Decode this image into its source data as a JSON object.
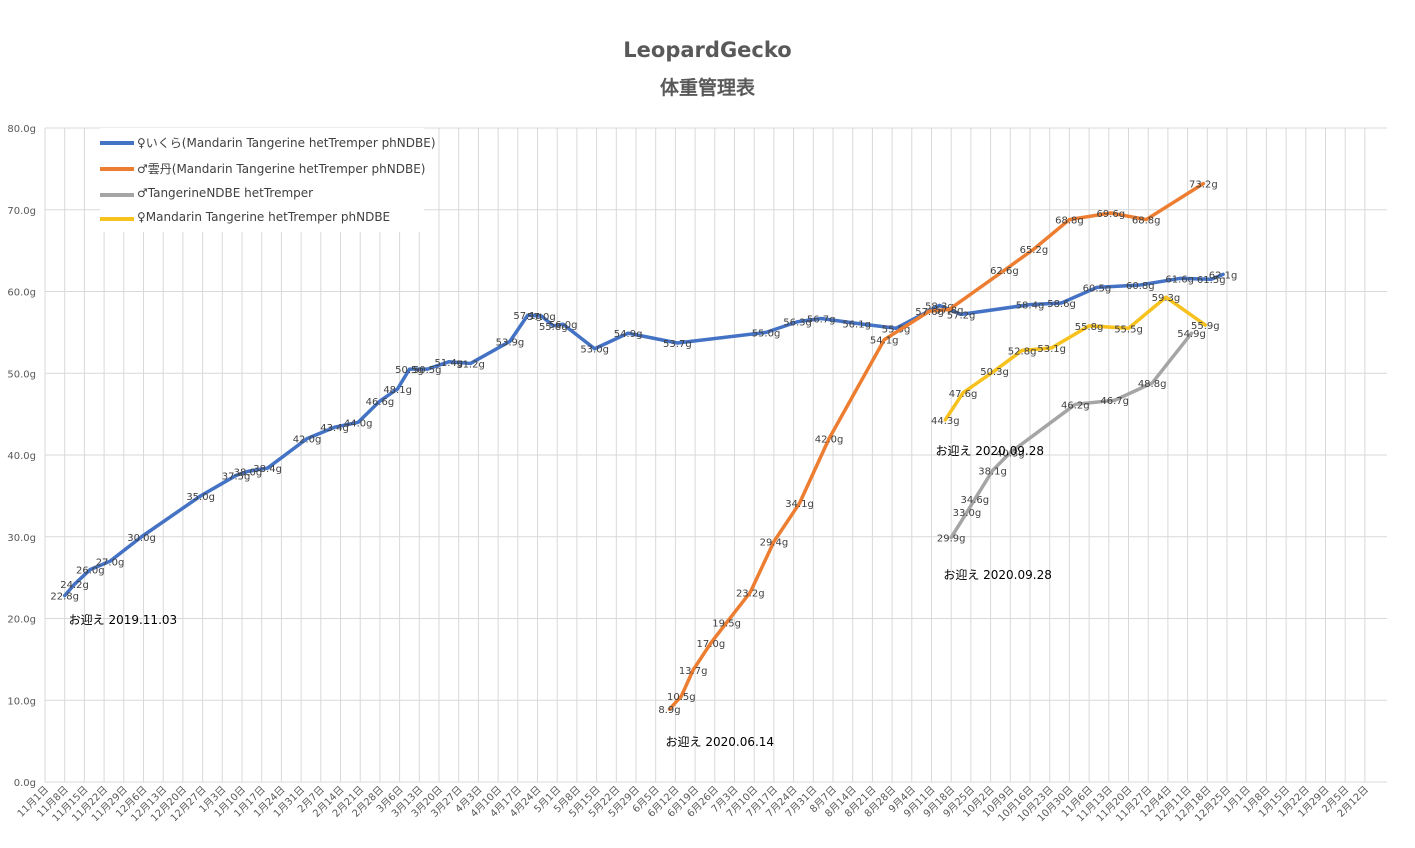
{
  "chart_data": {
    "type": "line",
    "title": "LeopardGecko",
    "subtitle": "体重管理表",
    "ylim": [
      0,
      80
    ],
    "yticks": [
      "0.0g",
      "10.0g",
      "20.0g",
      "30.0g",
      "40.0g",
      "50.0g",
      "60.0g",
      "70.0g",
      "80.0g"
    ],
    "grid": true,
    "legend_position": "top-left",
    "x_categories": [
      "11月1日",
      "11月8日",
      "11月15日",
      "11月22日",
      "11月29日",
      "12月6日",
      "12月13日",
      "12月20日",
      "12月27日",
      "1月3日",
      "1月10日",
      "1月17日",
      "1月24日",
      "1月31日",
      "2月7日",
      "2月14日",
      "2月21日",
      "2月28日",
      "3月6日",
      "3月13日",
      "3月20日",
      "3月27日",
      "4月3日",
      "4月10日",
      "4月17日",
      "4月24日",
      "5月1日",
      "5月8日",
      "5月15日",
      "5月22日",
      "5月29日",
      "6月5日",
      "6月12日",
      "6月19日",
      "6月26日",
      "7月3日",
      "7月10日",
      "7月17日",
      "7月24日",
      "7月31日",
      "8月7日",
      "8月14日",
      "8月21日",
      "8月28日",
      "9月4日",
      "9月11日",
      "9月18日",
      "9月25日",
      "10月2日",
      "10月9日",
      "10月16日",
      "10月23日",
      "10月30日",
      "11月6日",
      "11月13日",
      "11月20日",
      "11月27日",
      "12月4日",
      "12月11日",
      "12月18日",
      "12月25日",
      "1月1日",
      "1月8日",
      "1月15日",
      "1月22日",
      "1月29日",
      "2月5日",
      "2月12日"
    ],
    "series": [
      {
        "name": "♀いくら(Mandarin  Tangerine hetTremper phNDBE)",
        "color": "#4472c4",
        "points": [
          {
            "x": 1.0,
            "y": 22.8,
            "label": "22.8g"
          },
          {
            "x": 1.5,
            "y": 24.2,
            "label": "24.2g"
          },
          {
            "x": 2.3,
            "y": 26.0,
            "label": "26.0g"
          },
          {
            "x": 3.3,
            "y": 27.0,
            "label": "27.0g"
          },
          {
            "x": 4.9,
            "y": 30.0,
            "label": "30.0g"
          },
          {
            "x": 7.9,
            "y": 35.0,
            "label": "35.0g"
          },
          {
            "x": 9.7,
            "y": 37.5,
            "label": "37.5g"
          },
          {
            "x": 10.3,
            "y": 38.0,
            "label": "38.0g"
          },
          {
            "x": 11.3,
            "y": 38.4,
            "label": "38.4g"
          },
          {
            "x": 13.3,
            "y": 42.0,
            "label": "42.0g"
          },
          {
            "x": 14.7,
            "y": 43.4,
            "label": "43.4g"
          },
          {
            "x": 15.9,
            "y": 44.0,
            "label": "44.0g"
          },
          {
            "x": 17.0,
            "y": 46.6,
            "label": "46.6g"
          },
          {
            "x": 17.9,
            "y": 48.1,
            "label": "48.1g"
          },
          {
            "x": 18.5,
            "y": 50.5,
            "label": "50.5g"
          },
          {
            "x": 19.4,
            "y": 50.5,
            "label": "50.5g"
          },
          {
            "x": 20.5,
            "y": 51.4,
            "label": "51.4g"
          },
          {
            "x": 21.6,
            "y": 51.2,
            "label": "51.2g"
          },
          {
            "x": 23.6,
            "y": 53.9,
            "label": "53.9g"
          },
          {
            "x": 24.5,
            "y": 57.1,
            "label": "57.1g"
          },
          {
            "x": 25.2,
            "y": 57.0,
            "label": "57.0g"
          },
          {
            "x": 25.8,
            "y": 55.8,
            "label": "55.8g"
          },
          {
            "x": 26.3,
            "y": 56.0,
            "label": "56.0g"
          },
          {
            "x": 27.9,
            "y": 53.0,
            "label": "53.0g"
          },
          {
            "x": 29.6,
            "y": 54.9,
            "label": "54.9g"
          },
          {
            "x": 32.1,
            "y": 53.7,
            "label": "53.7g"
          },
          {
            "x": 36.6,
            "y": 55.0,
            "label": "55.0g"
          },
          {
            "x": 38.2,
            "y": 56.3,
            "label": "56.3g"
          },
          {
            "x": 39.4,
            "y": 56.7,
            "label": "56.7g"
          },
          {
            "x": 41.2,
            "y": 56.1,
            "label": "56.1g"
          },
          {
            "x": 43.2,
            "y": 55.5,
            "label": "55.5g"
          },
          {
            "x": 45.4,
            "y": 58.3,
            "label": "58.3g"
          },
          {
            "x": 46.5,
            "y": 57.2,
            "label": "57.2g"
          },
          {
            "x": 50.0,
            "y": 58.4,
            "label": "58.4g"
          },
          {
            "x": 51.6,
            "y": 58.6,
            "label": "58.6g"
          },
          {
            "x": 53.4,
            "y": 60.5,
            "label": "60.5g"
          },
          {
            "x": 55.6,
            "y": 60.8,
            "label": "60.8g"
          },
          {
            "x": 57.6,
            "y": 61.6,
            "label": "61.6g"
          },
          {
            "x": 59.2,
            "y": 61.5,
            "label": "61.5g"
          },
          {
            "x": 59.8,
            "y": 62.1,
            "label": "62.1g"
          }
        ]
      },
      {
        "name": "♂雲丹(Mandarin  Tangerine hetTremper phNDBE)",
        "color": "#ed7d31",
        "points": [
          {
            "x": 31.7,
            "y": 8.9,
            "label": "8.9g"
          },
          {
            "x": 32.3,
            "y": 10.5,
            "label": "10.5g"
          },
          {
            "x": 32.9,
            "y": 13.7,
            "label": "13.7g"
          },
          {
            "x": 33.8,
            "y": 17.0,
            "label": "17.0g"
          },
          {
            "x": 34.6,
            "y": 19.5,
            "label": "19.5g"
          },
          {
            "x": 35.8,
            "y": 23.2,
            "label": "23.2g"
          },
          {
            "x": 37.0,
            "y": 29.4,
            "label": "29.4g"
          },
          {
            "x": 38.3,
            "y": 34.1,
            "label": "34.1g"
          },
          {
            "x": 39.8,
            "y": 42.0,
            "label": "42.0g"
          },
          {
            "x": 42.6,
            "y": 54.1,
            "label": "54.1g"
          },
          {
            "x": 44.9,
            "y": 57.6,
            "label": "57.6g"
          },
          {
            "x": 45.9,
            "y": 57.8,
            "label": "57.8g"
          },
          {
            "x": 48.7,
            "y": 62.6,
            "label": "62.6g"
          },
          {
            "x": 50.2,
            "y": 65.2,
            "label": "65.2g"
          },
          {
            "x": 52.0,
            "y": 68.8,
            "label": "68.8g"
          },
          {
            "x": 54.1,
            "y": 69.6,
            "label": "69.6g"
          },
          {
            "x": 55.9,
            "y": 68.8,
            "label": "68.8g"
          },
          {
            "x": 58.8,
            "y": 73.2,
            "label": "73.2g"
          }
        ]
      },
      {
        "name": "♂TangerineNDBE hetTremper",
        "color": "#a5a5a5",
        "points": [
          {
            "x": 46.0,
            "y": 29.9,
            "label": "29.9g"
          },
          {
            "x": 46.8,
            "y": 33.0,
            "label": "33.0g"
          },
          {
            "x": 47.2,
            "y": 34.6,
            "label": "34.6g"
          },
          {
            "x": 48.1,
            "y": 38.1,
            "label": "38.1g"
          },
          {
            "x": 49.0,
            "y": 40.3,
            "label": "40.3g"
          },
          {
            "x": 52.3,
            "y": 46.2,
            "label": "46.2g"
          },
          {
            "x": 54.3,
            "y": 46.7,
            "label": "46.7g"
          },
          {
            "x": 56.2,
            "y": 48.8,
            "label": "48.8g"
          },
          {
            "x": 58.2,
            "y": 54.9,
            "label": "54.9g"
          }
        ]
      },
      {
        "name": "♀Mandarin  Tangerine hetTremper phNDBE",
        "color": "#f7c21d",
        "points": [
          {
            "x": 45.7,
            "y": 44.3,
            "label": "44.3g"
          },
          {
            "x": 46.6,
            "y": 47.6,
            "label": "47.6g"
          },
          {
            "x": 48.2,
            "y": 50.3,
            "label": "50.3g"
          },
          {
            "x": 49.6,
            "y": 52.8,
            "label": "52.8g"
          },
          {
            "x": 51.1,
            "y": 53.1,
            "label": "53.1g"
          },
          {
            "x": 53.0,
            "y": 55.8,
            "label": "55.8g"
          },
          {
            "x": 55.0,
            "y": 55.5,
            "label": "55.5g"
          },
          {
            "x": 56.9,
            "y": 59.3,
            "label": "59.3g"
          },
          {
            "x": 58.9,
            "y": 55.9,
            "label": "55.9g"
          }
        ]
      }
    ],
    "annotations": [
      {
        "text": "お迎え  2019.11.03",
        "x": 1.2,
        "y": 19.8
      },
      {
        "text": "お迎え  2020.06.14",
        "x": 31.5,
        "y": 4.9
      },
      {
        "text": "お迎え  2020.09.28",
        "x": 45.2,
        "y": 40.5
      },
      {
        "text": "お迎え  2020.09.28",
        "x": 45.6,
        "y": 25.3
      }
    ]
  }
}
